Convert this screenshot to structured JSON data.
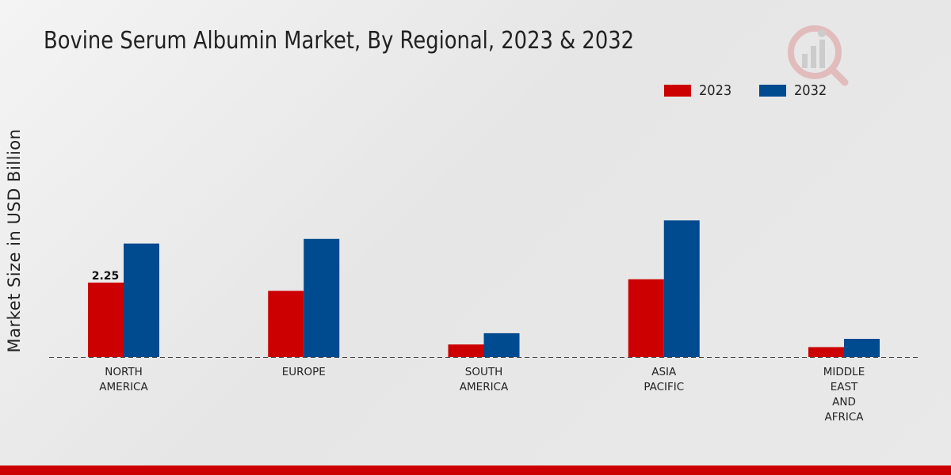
{
  "chart_data": {
    "type": "bar",
    "title": "Bovine Serum Albumin Market, By Regional, 2023 & 2032",
    "xlabel": "",
    "ylabel": "Market Size in USD Billion",
    "categories": [
      [
        "NORTH",
        "AMERICA"
      ],
      [
        "EUROPE"
      ],
      [
        "SOUTH",
        "AMERICA"
      ],
      [
        "ASIA",
        "PACIFIC"
      ],
      [
        "MIDDLE",
        "EAST",
        "AND",
        "AFRICA"
      ]
    ],
    "series": [
      {
        "name": "2023",
        "color": "#cc0000",
        "values": [
          2.25,
          2.0,
          0.38,
          2.35,
          0.3
        ]
      },
      {
        "name": "2032",
        "color": "#004a8f",
        "values": [
          3.43,
          3.57,
          0.72,
          4.13,
          0.55
        ]
      }
    ],
    "data_labels": [
      {
        "series": 0,
        "index": 0,
        "text": "2.25"
      }
    ],
    "ylim": [
      0,
      10.7
    ],
    "grid": false,
    "legend_position": "top-right"
  }
}
